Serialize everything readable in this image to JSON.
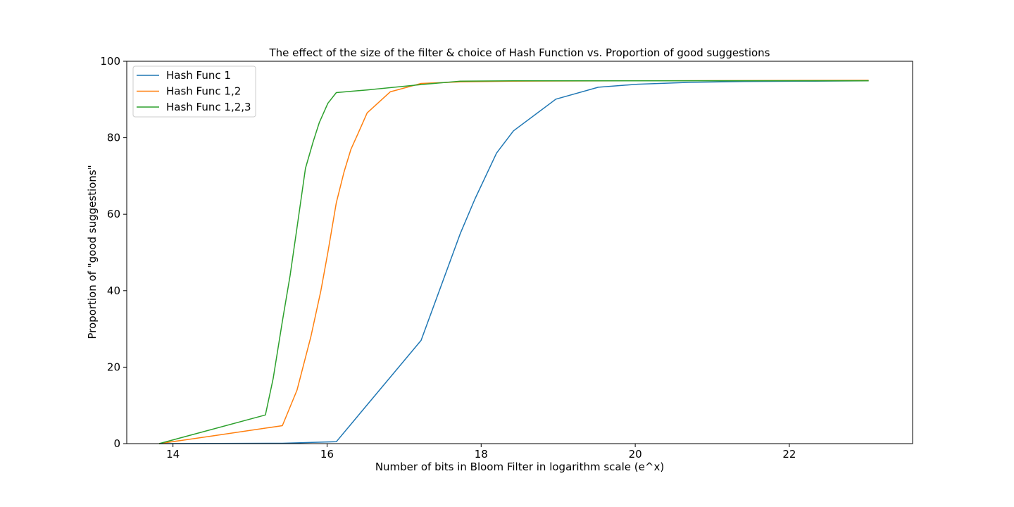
{
  "chart_data": {
    "type": "line",
    "title": "The effect of the size of the filter & choice of Hash Function vs. Proportion of good suggestions",
    "xlabel": "Number of bits in Bloom Filter in logarithm scale (e^x)",
    "ylabel": "Proportion of \"good suggestions\"",
    "xlim": [
      13.4,
      23.6
    ],
    "ylim": [
      0,
      100
    ],
    "xticks": [
      14,
      16,
      18,
      20,
      22
    ],
    "yticks": [
      0,
      20,
      40,
      60,
      80,
      100
    ],
    "grid": false,
    "legend_position": "top-left",
    "series": [
      {
        "name": "Hash Func 1",
        "color": "#1f77b4",
        "points": [
          [
            13.82,
            0
          ],
          [
            15.42,
            0.1
          ],
          [
            16.12,
            0.5
          ],
          [
            17.22,
            27
          ],
          [
            17.73,
            55
          ],
          [
            17.92,
            64
          ],
          [
            18.2,
            76
          ],
          [
            18.42,
            81.8
          ],
          [
            18.97,
            90.1
          ],
          [
            19.52,
            93.2
          ],
          [
            20.03,
            94
          ],
          [
            20.72,
            94.5
          ],
          [
            21.42,
            94.7
          ],
          [
            22.33,
            94.8
          ],
          [
            23.03,
            94.9
          ]
        ]
      },
      {
        "name": "Hash Func 1,2",
        "color": "#ff7f0e",
        "points": [
          [
            13.82,
            0
          ],
          [
            14.51,
            2
          ],
          [
            15.42,
            4.7
          ],
          [
            15.61,
            14
          ],
          [
            15.79,
            28
          ],
          [
            15.92,
            40
          ],
          [
            16.01,
            50
          ],
          [
            16.12,
            63
          ],
          [
            16.22,
            71
          ],
          [
            16.31,
            77
          ],
          [
            16.4,
            81
          ],
          [
            16.52,
            86.5
          ],
          [
            16.82,
            92
          ],
          [
            17.22,
            94.2
          ],
          [
            17.73,
            94.6
          ],
          [
            18.42,
            94.8
          ],
          [
            20.03,
            94.9
          ],
          [
            23.03,
            95
          ]
        ]
      },
      {
        "name": "Hash Func 1,2,3",
        "color": "#2ca02c",
        "points": [
          [
            13.82,
            0
          ],
          [
            15.2,
            7.5
          ],
          [
            15.3,
            17
          ],
          [
            15.42,
            32
          ],
          [
            15.52,
            44
          ],
          [
            15.61,
            56.5
          ],
          [
            15.72,
            72
          ],
          [
            15.82,
            79
          ],
          [
            15.9,
            84
          ],
          [
            16.01,
            89
          ],
          [
            16.12,
            91.8
          ],
          [
            16.52,
            92.5
          ],
          [
            17.22,
            93.9
          ],
          [
            17.73,
            94.8
          ],
          [
            18.42,
            94.9
          ],
          [
            20.03,
            94.9
          ],
          [
            23.03,
            94.9
          ]
        ]
      }
    ]
  }
}
